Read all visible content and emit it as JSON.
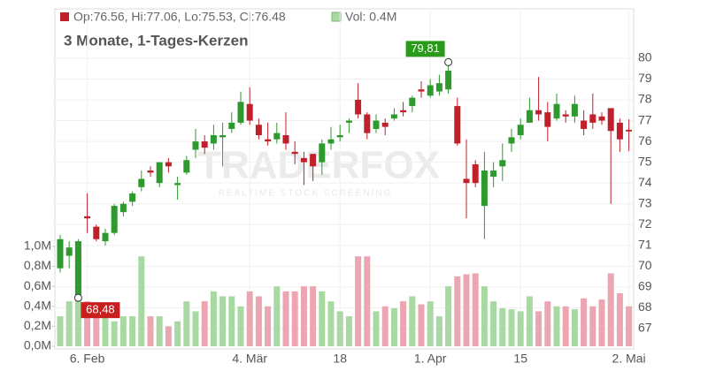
{
  "chart_data": {
    "type": "candlestick",
    "legend_ohlc": "Op:76.56, Hi:77.06, Lo:75.53, Cl:76.48",
    "legend_volume": "Vol: 0.4M",
    "subtitle": "3 Monate, 1-Tages-Kerzen",
    "watermark": "TRADERFOX",
    "watermark_sub": "REALTIME STOCK SCREENING",
    "high_label": "79,81",
    "low_label": "68,48",
    "up_color": "#2e9a2e",
    "down_color": "#c0202a",
    "volume_up_color": "#a9d9a2",
    "volume_down_color": "#eba6b2",
    "categories": [
      null,
      null,
      null,
      "6. Feb",
      null,
      null,
      null,
      null,
      null,
      null,
      null,
      null,
      null,
      null,
      null,
      null,
      null,
      null,
      null,
      null,
      null,
      "4. Mär",
      null,
      null,
      null,
      null,
      null,
      null,
      null,
      null,
      null,
      "18",
      null,
      null,
      null,
      null,
      null,
      null,
      null,
      null,
      null,
      "1. Apr",
      null,
      null,
      null,
      null,
      null,
      null,
      null,
      null,
      null,
      "15",
      null,
      null,
      null,
      null,
      null,
      null,
      null,
      null,
      null,
      null,
      null,
      "2. Mai"
    ],
    "open": [
      69.9,
      70.5,
      68.5,
      72.4,
      71.9,
      71.2,
      71.6,
      72.6,
      73.1,
      73.8,
      74.6,
      74.0,
      75.0,
      73.9,
      74.5,
      75.6,
      76.0,
      75.9,
      76.2,
      76.6,
      76.9,
      77.8,
      76.8,
      76.1,
      76.1,
      76.3,
      75.5,
      75.2,
      75.4,
      75.0,
      75.9,
      76.2,
      76.9,
      78.0,
      77.3,
      76.6,
      76.9,
      77.1,
      77.5,
      77.7,
      78.5,
      78.2,
      78.4,
      78.5,
      77.7,
      74.2,
      74.9,
      72.9,
      74.3,
      74.8,
      75.9,
      76.3,
      76.9,
      77.5,
      77.4,
      77.1,
      77.3,
      77.2,
      77.0,
      77.3,
      77.2,
      77.6,
      76.9,
      76.56
    ],
    "high": [
      71.5,
      71.2,
      71.3,
      73.5,
      72.0,
      71.8,
      73.0,
      73.1,
      73.6,
      74.6,
      74.8,
      75.0,
      75.2,
      74.3,
      75.3,
      76.6,
      76.3,
      76.8,
      76.9,
      77.4,
      78.4,
      78.6,
      77.1,
      76.9,
      76.9,
      77.4,
      76.0,
      75.5,
      75.4,
      76.1,
      76.7,
      76.8,
      77.1,
      78.8,
      77.4,
      77.3,
      77.1,
      77.6,
      77.9,
      78.2,
      78.9,
      79.0,
      79.2,
      79.81,
      78.1,
      76.1,
      75.1,
      75.5,
      75.0,
      75.9,
      76.6,
      77.1,
      78.1,
      79.1,
      77.9,
      78.3,
      77.5,
      78.2,
      77.5,
      78.3,
      77.4,
      77.6,
      77.1,
      77.06
    ],
    "low": [
      69.7,
      69.9,
      68.48,
      71.6,
      71.2,
      71.0,
      71.5,
      72.4,
      72.9,
      73.6,
      74.3,
      73.8,
      74.5,
      73.2,
      74.4,
      75.2,
      75.4,
      75.6,
      74.8,
      76.4,
      76.8,
      76.8,
      76.1,
      75.8,
      75.9,
      75.6,
      74.9,
      73.9,
      74.1,
      74.4,
      75.6,
      76.0,
      76.4,
      77.1,
      76.1,
      76.4,
      76.3,
      77.0,
      77.2,
      77.4,
      78.1,
      78.1,
      78.2,
      78.3,
      75.8,
      72.3,
      73.8,
      71.3,
      73.8,
      74.1,
      75.5,
      76.1,
      76.9,
      77.0,
      76.0,
      77.0,
      76.9,
      76.9,
      76.3,
      76.6,
      76.8,
      73.0,
      75.5,
      75.53
    ],
    "close": [
      71.3,
      70.9,
      71.2,
      72.3,
      71.3,
      71.6,
      72.9,
      73.0,
      73.5,
      74.2,
      74.5,
      75.0,
      74.8,
      74.0,
      75.1,
      76.0,
      75.7,
      76.3,
      76.3,
      76.9,
      77.9,
      77.0,
      76.3,
      76.0,
      76.4,
      75.9,
      75.4,
      75.0,
      74.8,
      75.9,
      76.1,
      76.3,
      77.0,
      77.3,
      76.4,
      77.0,
      76.7,
      77.3,
      77.4,
      78.1,
      78.4,
      78.7,
      78.8,
      79.4,
      75.9,
      74.0,
      74.0,
      74.6,
      74.6,
      75.1,
      76.2,
      76.8,
      77.5,
      77.3,
      76.7,
      77.8,
      77.2,
      77.8,
      76.6,
      76.9,
      77.0,
      76.5,
      76.1,
      76.48
    ],
    "volume": [
      0.3,
      0.45,
      1.05,
      0.45,
      0.4,
      0.35,
      0.25,
      0.3,
      0.3,
      0.9,
      0.3,
      0.3,
      0.2,
      0.25,
      0.45,
      0.35,
      0.45,
      0.55,
      0.5,
      0.5,
      0.4,
      0.55,
      0.5,
      0.4,
      0.6,
      0.55,
      0.55,
      0.6,
      0.6,
      0.55,
      0.45,
      0.35,
      0.3,
      0.9,
      0.9,
      0.35,
      0.4,
      0.38,
      0.45,
      0.5,
      0.42,
      0.45,
      0.3,
      0.6,
      0.7,
      0.72,
      0.73,
      0.6,
      0.45,
      0.38,
      0.37,
      0.35,
      0.5,
      0.35,
      0.45,
      0.4,
      0.4,
      0.37,
      0.48,
      0.4,
      0.47,
      0.73,
      0.53,
      0.4
    ],
    "ylim": [
      66.15,
      82.29
    ],
    "yticks": [
      67,
      68,
      69,
      70,
      71,
      72,
      73,
      74,
      75,
      76,
      77,
      78,
      79,
      80
    ],
    "y2lim": [
      0,
      3.36
    ],
    "y2ticks": [
      {
        "value": 0,
        "label": "0,0M"
      },
      {
        "value": 0.2,
        "label": "0,2M"
      },
      {
        "value": 0.4,
        "label": "0,4M"
      },
      {
        "value": 0.6,
        "label": "0,6M"
      },
      {
        "value": 0.8,
        "label": "0,8M"
      },
      {
        "value": 1.0,
        "label": "1,0M"
      }
    ],
    "grid": true
  }
}
